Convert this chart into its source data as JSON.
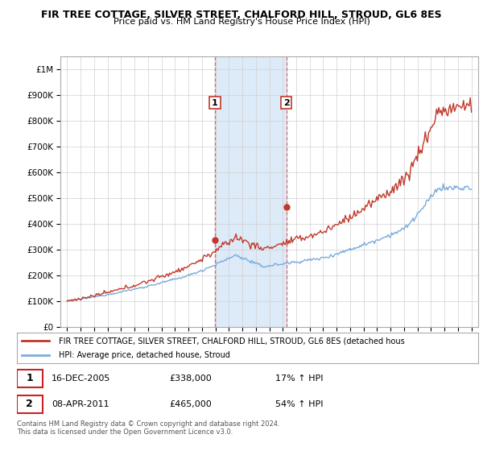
{
  "title": "FIR TREE COTTAGE, SILVER STREET, CHALFORD HILL, STROUD, GL6 8ES",
  "subtitle": "Price paid vs. HM Land Registry's House Price Index (HPI)",
  "hpi_color": "#7aabdc",
  "price_color": "#c0392b",
  "highlight_color": "#ddeaf8",
  "transaction1": {
    "date": 2005.96,
    "price": 338000,
    "label": "1",
    "date_str": "16-DEC-2005",
    "price_str": "£338,000",
    "pct": "17% ↑ HPI"
  },
  "transaction2": {
    "date": 2011.27,
    "price": 465000,
    "label": "2",
    "date_str": "08-APR-2011",
    "price_str": "£465,000",
    "pct": "54% ↑ HPI"
  },
  "legend_line1": "FIR TREE COTTAGE, SILVER STREET, CHALFORD HILL, STROUD, GL6 8ES (detached hous",
  "legend_line2": "HPI: Average price, detached house, Stroud",
  "footnote": "Contains HM Land Registry data © Crown copyright and database right 2024.\nThis data is licensed under the Open Government Licence v3.0.",
  "ylim": [
    0,
    1050000
  ],
  "xlim_start": 1994.5,
  "xlim_end": 2025.5
}
